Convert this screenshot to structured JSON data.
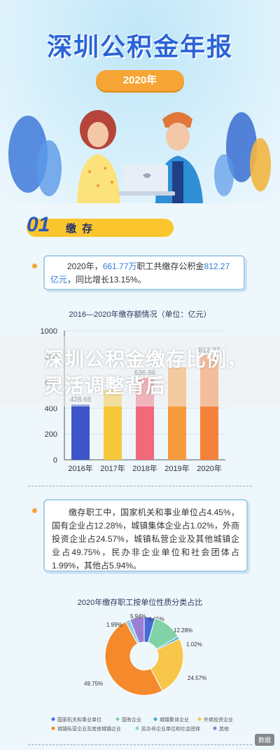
{
  "header": {
    "title": "深圳公积金年报",
    "year": "2020年"
  },
  "section1": {
    "num": "01",
    "label": "缴 存"
  },
  "box1": {
    "p1": "2020年，",
    "v1": "661.77万",
    "p2": "职工共缴存公积金",
    "v2": "812.27亿元",
    "p3": "，同比增长13.15%。"
  },
  "chart1": {
    "title": "2016—2020年缴存额情况（单位：亿元）"
  },
  "box2": {
    "text": "缴存职工中，国家机关和事业单位占4.45%，国有企业占12.28%，城镇集体企业占1.02%，外商投资企业占24.57%，城镇私营企业及其他城镇企业占49.75%，民办非企业单位和社会团体占1.99%，其他占5.94%。"
  },
  "chart2": {
    "title": "2020年缴存职工按单位性质分类占比"
  },
  "overlay": {
    "text": "深圳公积金缴存比例，灵活调整背后"
  },
  "watermark": "数据",
  "chart_data": [
    {
      "type": "bar",
      "title": "2016—2020年缴存额情况（单位：亿元）",
      "categories": [
        "2016年",
        "2017年",
        "2018年",
        "2019年",
        "2020年"
      ],
      "values": [
        428.68,
        540,
        636.86,
        717.85,
        812.27
      ],
      "labels": [
        "428.68",
        "",
        "636.86",
        "",
        "812.27"
      ],
      "colors": [
        "#3d55c8",
        "#f7c83a",
        "#f06a7b",
        "#f79a3c",
        "#f5823a"
      ],
      "ylim": [
        0,
        1000
      ],
      "yticks": [
        0,
        200,
        400,
        600,
        800,
        1000
      ],
      "grid": true
    },
    {
      "type": "pie",
      "title": "2020年缴存职工按单位性质分类占比",
      "slices": [
        {
          "name": "国家机关和事业单位",
          "value": 4.45,
          "label": "4.45%",
          "color": "#4a6bd6"
        },
        {
          "name": "国有企业",
          "value": 12.28,
          "label": "12.28%",
          "color": "#7fd3a6"
        },
        {
          "name": "城镇集体企业",
          "value": 1.02,
          "label": "1.02%",
          "color": "#4aa9d8"
        },
        {
          "name": "外商投资企业",
          "value": 24.57,
          "label": "24.57%",
          "color": "#f7c64a"
        },
        {
          "name": "城镇私营企业及其他城镇企业",
          "value": 49.75,
          "label": "49.75%",
          "color": "#f58a2c"
        },
        {
          "name": "民办非企业单位和社会团体",
          "value": 1.99,
          "label": "1.99%",
          "color": "#8fd0e6"
        },
        {
          "name": "其他",
          "value": 5.94,
          "label": "5.94%",
          "color": "#9b7fd4"
        }
      ]
    }
  ]
}
